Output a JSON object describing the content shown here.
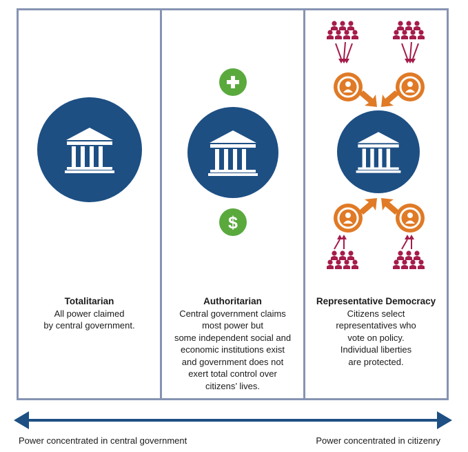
{
  "colors": {
    "border": "#8693b2",
    "navy": "#1d4f83",
    "green": "#5aa93d",
    "orange": "#e07a26",
    "crimson": "#a51c4b"
  },
  "icons": {
    "government": "bank-building-icon",
    "plus": "plus-icon",
    "money": "dollar-sign-icon",
    "representative": "person-badge-icon",
    "citizens": "people-group-icon",
    "arrow": "arrow-icon"
  },
  "columns": [
    {
      "title": "Totalitarian",
      "body": "All power claimed\nby central government."
    },
    {
      "title": "Authoritarian",
      "body": "Central government claims\nmost power but\nsome independent social and\neconomic institutions exist\nand government does not\nexert total control over\ncitizens’ lives."
    },
    {
      "title": "Representative Democracy",
      "body": "Citizens select\nrepresentatives who\nvote on policy.\nIndividual liberties\nare protected."
    }
  ],
  "scale": {
    "left_label": "Power concentrated in central government",
    "right_label": "Power concentrated in citizenry"
  }
}
